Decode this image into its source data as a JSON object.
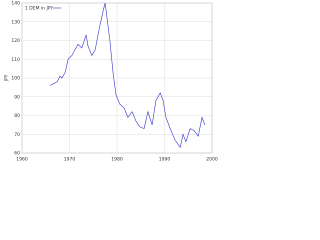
{
  "chart_data": {
    "type": "line",
    "y_label": "JPY",
    "x": [
      1965.9,
      1967.4,
      1968.0,
      1968.4,
      1969.1,
      1969.7,
      1970.5,
      1971.8,
      1972.6,
      1973.5,
      1973.9,
      1974.7,
      1975.4,
      1976.4,
      1977.1,
      1977.5,
      1977.9,
      1978.5,
      1979.2,
      1979.8,
      1980.6,
      1981.5,
      1982.3,
      1983.2,
      1984.0,
      1984.8,
      1985.7,
      1986.5,
      1987.4,
      1988.2,
      1989.1,
      1989.7,
      1990.3,
      1991.2,
      1992.2,
      1993.3,
      1993.9,
      1994.5,
      1995.4,
      1996.2,
      1997.1,
      1997.9,
      1998.5
    ],
    "series": [
      {
        "name": "1 DEM in JPY",
        "color": "#3333cc",
        "values": [
          96,
          98,
          101,
          100,
          103,
          110,
          112,
          118,
          116,
          123,
          117,
          112,
          115,
          128,
          136,
          140,
          132,
          120,
          102,
          91,
          86,
          84,
          79,
          82,
          77,
          74,
          73,
          82,
          75,
          88,
          92,
          88,
          79,
          73,
          67,
          63,
          70,
          66,
          73,
          72,
          69,
          79,
          75
        ]
      }
    ],
    "xlim": [
      1960,
      2000
    ],
    "xticks": [
      1960,
      1970,
      1980,
      1990,
      2000
    ],
    "ylim": [
      60,
      140
    ],
    "yticks": [
      60,
      70,
      80,
      90,
      100,
      110,
      120,
      130,
      140
    ],
    "grid": true,
    "legend": "top-left"
  }
}
